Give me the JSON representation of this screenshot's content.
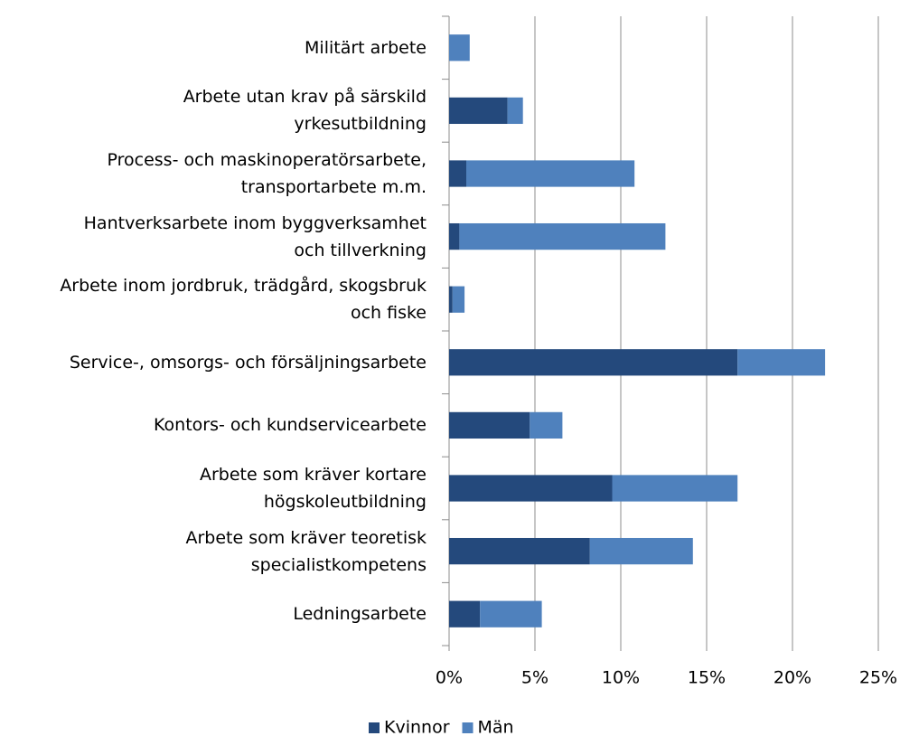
{
  "chart_data": {
    "type": "stacked_barh",
    "categories": [
      "Militärt arbete",
      "Arbete utan krav på särskild\nyrkesutbildning",
      "Process- och maskinoperatörsarbete,\ntransportarbete m.m.",
      "Hantverksarbete inom byggverksamhet\noch tillverkning",
      "Arbete inom jordbruk, trädgård, skogsbruk\noch fiske",
      "Service-, omsorgs- och försäljningsarbete",
      "Kontors- och kundservicearbete",
      "Arbete som kräver kortare\nhögskoleutbildning",
      "Arbete som kräver teoretisk\nspecialistkompetens",
      "Ledningsarbete"
    ],
    "series": [
      {
        "name": "Kvinnor",
        "color": "#24497c",
        "values": [
          0,
          3.4,
          1.0,
          0.6,
          0.2,
          16.8,
          4.7,
          9.5,
          8.2,
          1.8
        ]
      },
      {
        "name": "Män",
        "color": "#4f81bd",
        "values": [
          1.2,
          0.9,
          9.8,
          12.0,
          0.7,
          5.1,
          1.9,
          7.3,
          6.0,
          3.6
        ]
      }
    ],
    "xlim": [
      0,
      25
    ],
    "xticks": [
      {
        "value": 0,
        "label": "0%"
      },
      {
        "value": 5,
        "label": "5%"
      },
      {
        "value": 10,
        "label": "10%"
      },
      {
        "value": 15,
        "label": "15%"
      },
      {
        "value": 20,
        "label": "20%"
      },
      {
        "value": 25,
        "label": "25%"
      }
    ],
    "grid": true,
    "legend": "bottom"
  }
}
